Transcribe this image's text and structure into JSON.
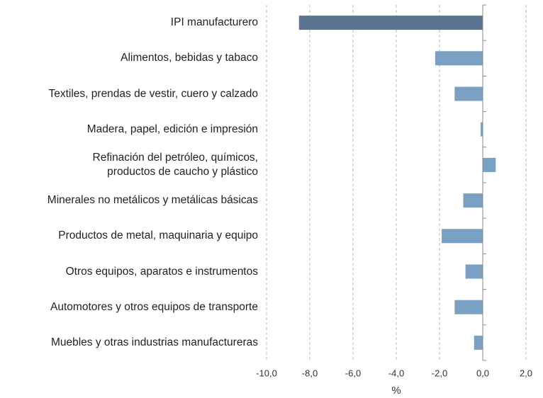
{
  "chart_data": {
    "type": "hbar",
    "categories": [
      "IPI manufacturero",
      "Alimentos, bebidas y tabaco",
      "Textiles, prendas de vestir, cuero y calzado",
      "Madera, papel, edición e impresión",
      "Refinación del petróleo, químicos,\nproductos de caucho y plástico",
      "Minerales no metálicos y metálicas básicas",
      "Productos de metal, maquinaria y equipo",
      "Otros equipos, aparatos e instrumentos",
      "Automotores y otros equipos de transporte",
      "Muebles y otras industrias manufactureras"
    ],
    "values": [
      -8.5,
      -2.2,
      -1.3,
      -0.1,
      0.6,
      -0.9,
      -1.9,
      -0.8,
      -1.3,
      -0.4
    ],
    "colors": [
      "#5b7590",
      "#7aa0c4",
      "#7aa0c4",
      "#7aa0c4",
      "#7aa0c4",
      "#7aa0c4",
      "#7aa0c4",
      "#7aa0c4",
      "#7aa0c4",
      "#7aa0c4"
    ],
    "xlabel": "%",
    "xlim": [
      -10,
      2
    ],
    "xticks": [
      {
        "value": -10,
        "label": "-10,0"
      },
      {
        "value": -8,
        "label": "-8,0"
      },
      {
        "value": -6,
        "label": "-6,0"
      },
      {
        "value": -4,
        "label": "-4,0"
      },
      {
        "value": -2,
        "label": "-2,0"
      },
      {
        "value": 0,
        "label": "0,0"
      },
      {
        "value": 2,
        "label": "2,0"
      }
    ],
    "grid": true
  }
}
